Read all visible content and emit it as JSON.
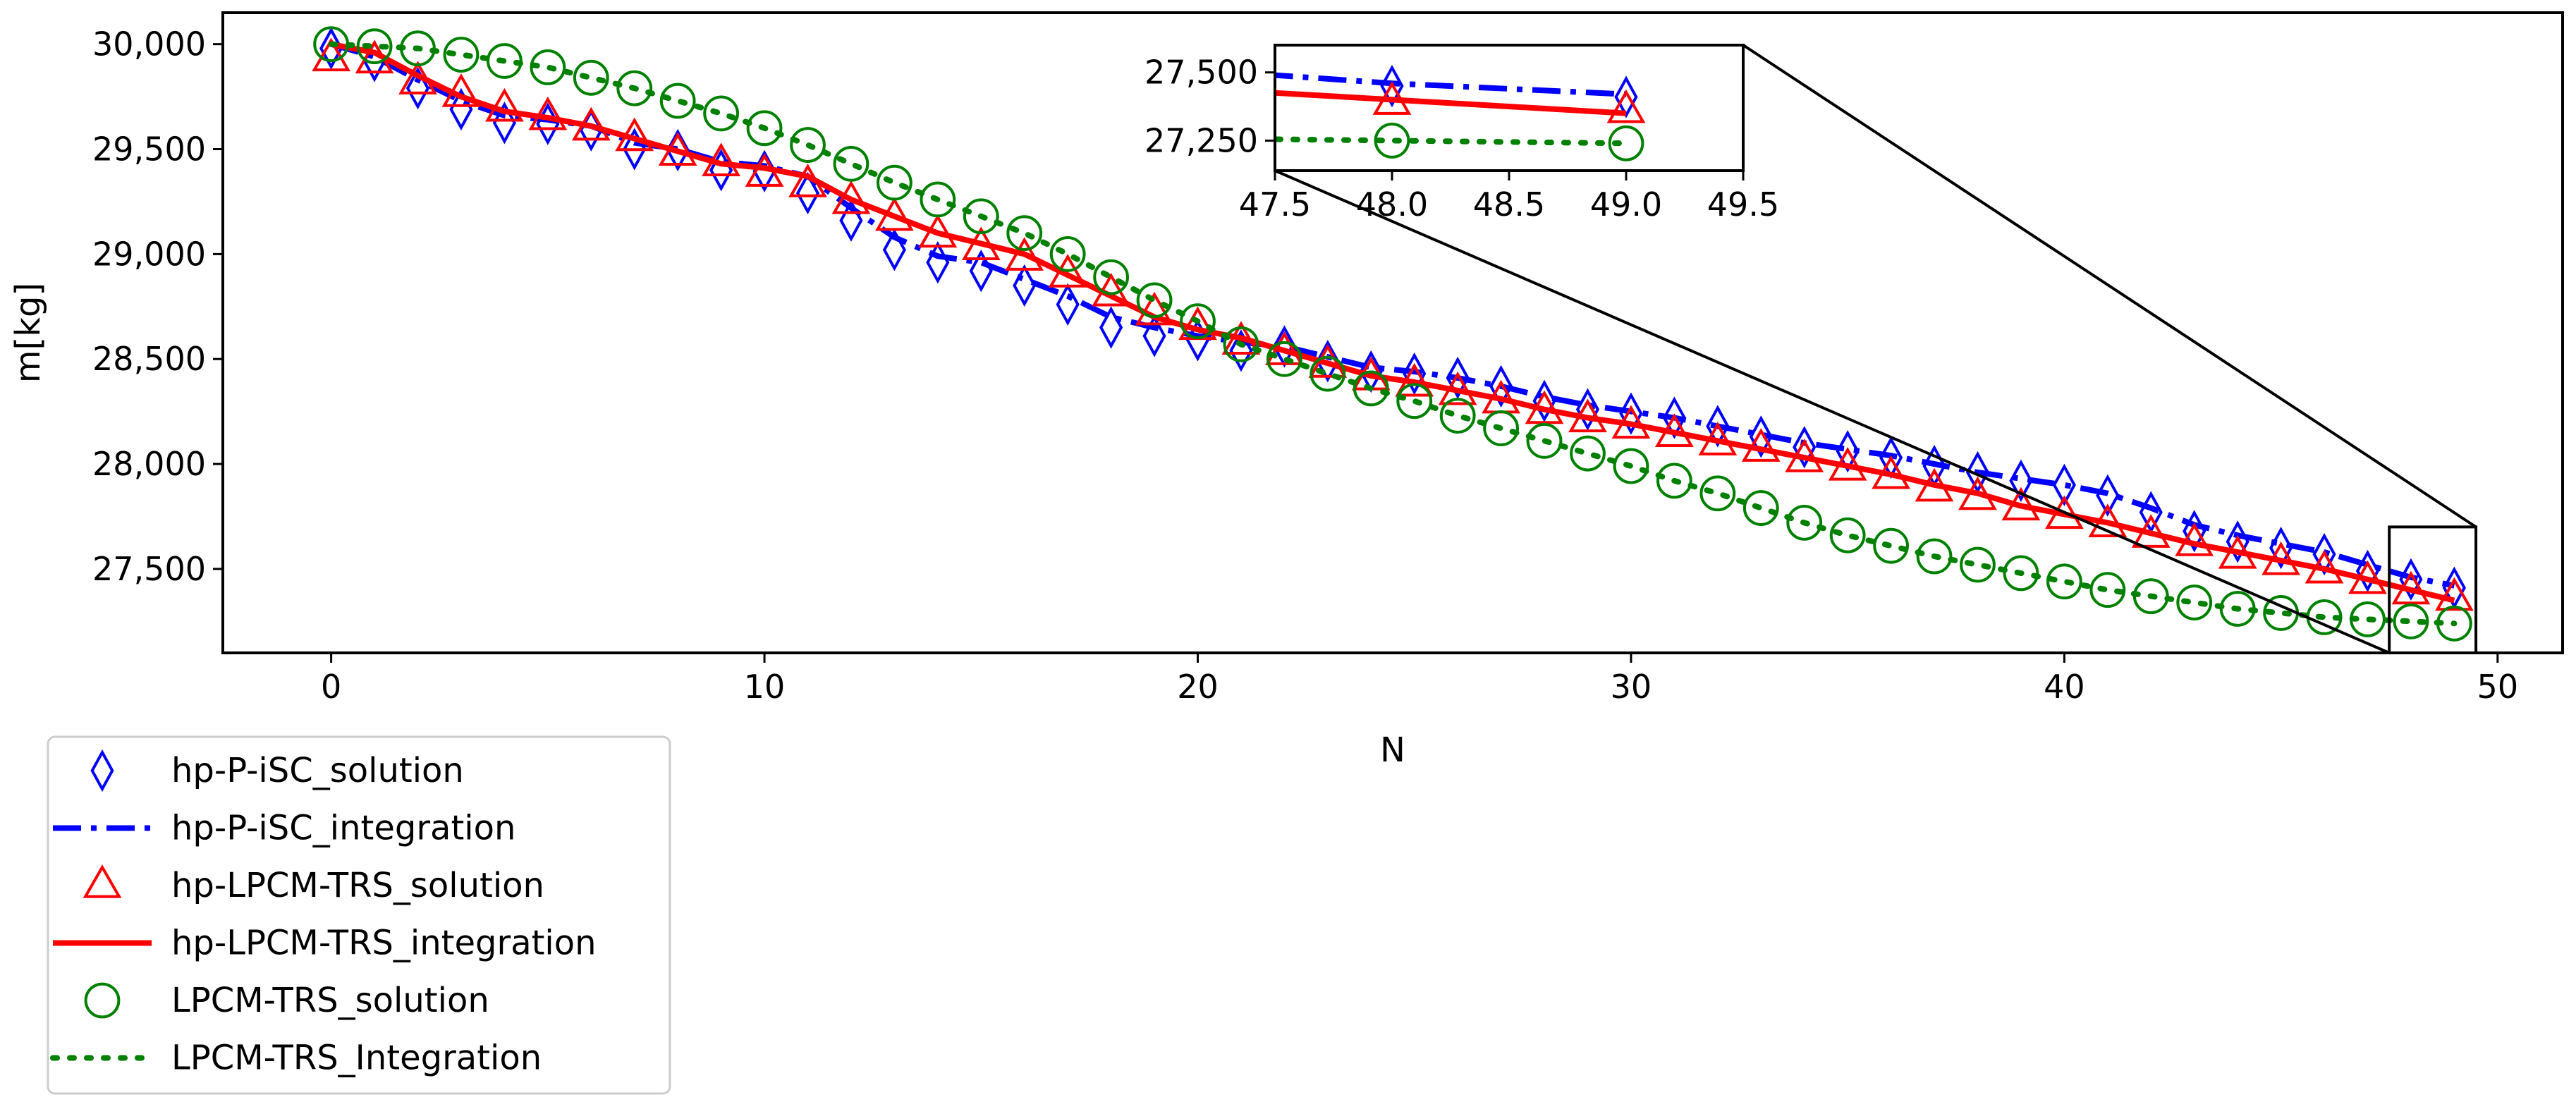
{
  "chart_data": {
    "type": "line",
    "xlabel": "N",
    "ylabel": "m[kg]",
    "xlim": [
      -2.5,
      51.5
    ],
    "ylim": [
      27100,
      30150
    ],
    "x_ticks": [
      0,
      10,
      20,
      30,
      40,
      50
    ],
    "x_tick_labels": [
      "0",
      "10",
      "20",
      "30",
      "40",
      "50"
    ],
    "y_ticks": [
      27500,
      28000,
      28500,
      29000,
      29500,
      30000
    ],
    "y_tick_labels": [
      "27,500",
      "28,000",
      "28,500",
      "29,000",
      "29,500",
      "30,000"
    ],
    "legend_position": "below-left",
    "series": [
      {
        "name": "hp-P-iSC_solution",
        "style": "diamond-markers",
        "color": "#0000ff",
        "x": [
          0,
          1,
          2,
          3,
          4,
          5,
          6,
          7,
          8,
          9,
          10,
          11,
          12,
          13,
          14,
          15,
          16,
          17,
          18,
          19,
          20,
          21,
          22,
          23,
          24,
          25,
          26,
          27,
          28,
          29,
          30,
          31,
          32,
          33,
          34,
          35,
          36,
          37,
          38,
          39,
          40,
          41,
          42,
          43,
          44,
          45,
          46,
          47,
          48,
          49
        ],
        "y": [
          29980,
          29920,
          29790,
          29690,
          29625,
          29620,
          29590,
          29500,
          29495,
          29400,
          29395,
          29290,
          29160,
          29020,
          28960,
          28920,
          28850,
          28760,
          28650,
          28610,
          28590,
          28540,
          28560,
          28490,
          28440,
          28430,
          28410,
          28370,
          28300,
          28260,
          28240,
          28220,
          28180,
          28130,
          28080,
          28060,
          28030,
          27990,
          27960,
          27920,
          27900,
          27850,
          27770,
          27680,
          27630,
          27600,
          27570,
          27490,
          27450,
          27410
        ]
      },
      {
        "name": "hp-P-iSC_integration",
        "style": "dash-dot-line",
        "color": "#0000ff",
        "x": [
          0,
          1,
          2,
          3,
          4,
          5,
          6,
          7,
          8,
          9,
          10,
          11,
          12,
          13,
          14,
          15,
          16,
          17,
          18,
          19,
          20,
          21,
          22,
          23,
          24,
          25,
          26,
          27,
          28,
          29,
          30,
          31,
          32,
          33,
          34,
          35,
          36,
          37,
          38,
          39,
          40,
          41,
          42,
          43,
          44,
          45,
          46,
          47,
          48,
          49
        ],
        "y": [
          30000,
          29940,
          29830,
          29730,
          29660,
          29640,
          29610,
          29530,
          29500,
          29440,
          29420,
          29370,
          29220,
          29080,
          28990,
          28960,
          28880,
          28800,
          28700,
          28650,
          28610,
          28580,
          28560,
          28510,
          28460,
          28440,
          28410,
          28370,
          28320,
          28280,
          28250,
          28220,
          28180,
          28140,
          28100,
          28070,
          28040,
          28000,
          27960,
          27930,
          27900,
          27860,
          27790,
          27710,
          27660,
          27620,
          27580,
          27520,
          27460,
          27420
        ]
      },
      {
        "name": "hp-LPCM-TRS_solution",
        "style": "triangle-markers",
        "color": "#ff0000",
        "x": [
          0,
          1,
          2,
          3,
          4,
          5,
          6,
          7,
          8,
          9,
          10,
          11,
          12,
          13,
          14,
          15,
          16,
          17,
          18,
          19,
          20,
          21,
          22,
          23,
          24,
          25,
          26,
          27,
          28,
          29,
          30,
          31,
          32,
          33,
          34,
          35,
          36,
          37,
          38,
          39,
          40,
          41,
          42,
          43,
          44,
          45,
          46,
          47,
          48,
          49
        ],
        "y": [
          29930,
          29920,
          29820,
          29760,
          29690,
          29650,
          29600,
          29550,
          29480,
          29430,
          29380,
          29330,
          29250,
          29170,
          29090,
          29030,
          28980,
          28900,
          28810,
          28720,
          28650,
          28580,
          28530,
          28470,
          28410,
          28380,
          28340,
          28300,
          28250,
          28210,
          28180,
          28140,
          28100,
          28070,
          28020,
          27980,
          27940,
          27880,
          27840,
          27790,
          27750,
          27710,
          27660,
          27620,
          27560,
          27530,
          27490,
          27440,
          27390,
          27360
        ]
      },
      {
        "name": "hp-LPCM-TRS_integration",
        "style": "solid-line",
        "color": "#ff0000",
        "x": [
          0,
          1,
          2,
          3,
          4,
          5,
          6,
          7,
          8,
          9,
          10,
          11,
          12,
          13,
          14,
          15,
          16,
          17,
          18,
          19,
          20,
          21,
          22,
          23,
          24,
          25,
          26,
          27,
          28,
          29,
          30,
          31,
          32,
          33,
          34,
          35,
          36,
          37,
          38,
          39,
          40,
          41,
          42,
          43,
          44,
          45,
          46,
          47,
          48,
          49
        ],
        "y": [
          30000,
          29960,
          29850,
          29750,
          29680,
          29650,
          29610,
          29550,
          29490,
          29430,
          29410,
          29370,
          29260,
          29180,
          29100,
          29050,
          29000,
          28900,
          28800,
          28700,
          28640,
          28600,
          28540,
          28480,
          28420,
          28390,
          28350,
          28310,
          28260,
          28220,
          28190,
          28150,
          28110,
          28070,
          28030,
          27990,
          27950,
          27900,
          27860,
          27800,
          27760,
          27720,
          27670,
          27620,
          27580,
          27540,
          27500,
          27450,
          27400,
          27350
        ]
      },
      {
        "name": "LPCM-TRS_solution",
        "style": "circle-markers",
        "color": "#008000",
        "x": [
          0,
          1,
          2,
          3,
          4,
          5,
          6,
          7,
          8,
          9,
          10,
          11,
          12,
          13,
          14,
          15,
          16,
          17,
          18,
          19,
          20,
          21,
          22,
          23,
          24,
          25,
          26,
          27,
          28,
          29,
          30,
          31,
          32,
          33,
          34,
          35,
          36,
          37,
          38,
          39,
          40,
          41,
          42,
          43,
          44,
          45,
          46,
          47,
          48,
          49
        ],
        "y": [
          30000,
          29990,
          29980,
          29950,
          29920,
          29890,
          29840,
          29790,
          29730,
          29670,
          29600,
          29520,
          29430,
          29340,
          29260,
          29180,
          29100,
          29000,
          28890,
          28780,
          28680,
          28570,
          28500,
          28430,
          28360,
          28300,
          28230,
          28170,
          28110,
          28050,
          27990,
          27920,
          27860,
          27790,
          27720,
          27660,
          27610,
          27560,
          27520,
          27480,
          27440,
          27400,
          27370,
          27340,
          27310,
          27290,
          27270,
          27260,
          27250,
          27240
        ]
      },
      {
        "name": "LPCM-TRS_Integration",
        "style": "dotted-line",
        "color": "#008000",
        "x": [
          0,
          1,
          2,
          3,
          4,
          5,
          6,
          7,
          8,
          9,
          10,
          11,
          12,
          13,
          14,
          15,
          16,
          17,
          18,
          19,
          20,
          21,
          22,
          23,
          24,
          25,
          26,
          27,
          28,
          29,
          30,
          31,
          32,
          33,
          34,
          35,
          36,
          37,
          38,
          39,
          40,
          41,
          42,
          43,
          44,
          45,
          46,
          47,
          48,
          49
        ],
        "y": [
          30000,
          29990,
          29980,
          29950,
          29920,
          29890,
          29840,
          29790,
          29730,
          29670,
          29600,
          29520,
          29430,
          29340,
          29260,
          29180,
          29100,
          29000,
          28890,
          28780,
          28680,
          28570,
          28500,
          28430,
          28360,
          28300,
          28230,
          28170,
          28110,
          28050,
          27990,
          27920,
          27860,
          27790,
          27720,
          27660,
          27610,
          27560,
          27520,
          27480,
          27440,
          27400,
          27370,
          27340,
          27310,
          27290,
          27270,
          27260,
          27250,
          27240
        ]
      }
    ],
    "inset": {
      "source_x_range": [
        47.5,
        49.5
      ],
      "source_y_range": [
        27100,
        27700
      ],
      "xlim": [
        47.5,
        49.5
      ],
      "ylim": [
        27140,
        27600
      ],
      "x_ticks": [
        47.5,
        48.0,
        48.5,
        49.0,
        49.5
      ],
      "x_tick_labels": [
        "47.5",
        "48.0",
        "48.5",
        "49.0",
        "49.5"
      ],
      "y_ticks": [
        27250,
        27500
      ],
      "y_tick_labels": [
        "27,250",
        "27,500"
      ]
    }
  }
}
